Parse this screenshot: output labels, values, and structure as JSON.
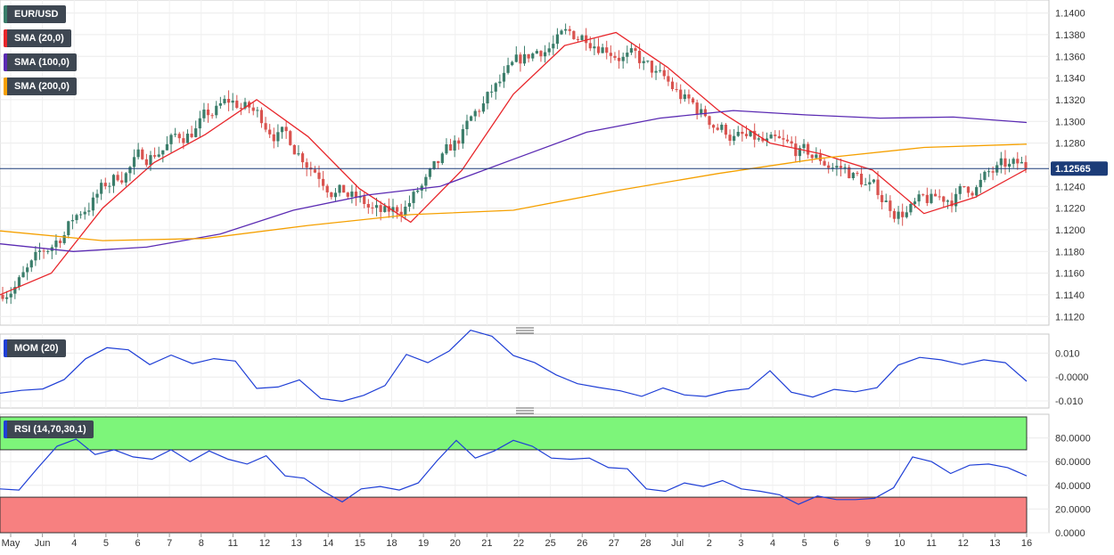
{
  "labels": {
    "instrument": "EUR/USD",
    "sma20": "SMA (20,0)",
    "sma100": "SMA (100,0)",
    "sma200": "SMA (200,0)",
    "mom": "MOM (20)",
    "rsi": "RSI (14,70,30,1)"
  },
  "colors": {
    "bull": "#3a7d6a",
    "bear": "#d9534f",
    "sma20": "#e8262b",
    "sma100": "#5b2bb3",
    "sma200": "#f5a000",
    "indicator": "#1f3fd6",
    "overbought": "#7df57a",
    "oversold": "#f78080",
    "lastPrice": "#1c3c78"
  },
  "chart_data": [
    {
      "type": "candlestick",
      "name": "EUR/USD",
      "timeframe_ticks": [
        "May",
        "Jun",
        "4",
        "5",
        "6",
        "7",
        "8",
        "11",
        "12",
        "13",
        "14",
        "15",
        "18",
        "19",
        "20",
        "21",
        "22",
        "25",
        "26",
        "27",
        "28",
        "Jul",
        "2",
        "3",
        "4",
        "5",
        "6",
        "9",
        "10",
        "11",
        "12",
        "13",
        "16"
      ],
      "ylim": [
        1.1112,
        1.1412
      ],
      "yticks": [
        "1.1120",
        "1.1140",
        "1.1160",
        "1.1180",
        "1.1200",
        "1.1220",
        "1.1240",
        "1.1260",
        "1.1280",
        "1.1300",
        "1.1320",
        "1.1340",
        "1.1360",
        "1.1380",
        "1.1400"
      ],
      "last_price": "1.12565",
      "last_price_value": 1.12565,
      "series": [
        {
          "name": "SMA (20,0)",
          "values": [
            1.114,
            1.116,
            1.122,
            1.1262,
            1.1288,
            1.132,
            1.1286,
            1.1238,
            1.1207,
            1.1255,
            1.1325,
            1.137,
            1.1382,
            1.135,
            1.131,
            1.128,
            1.127,
            1.1255,
            1.1215,
            1.123,
            1.1256
          ]
        },
        {
          "name": "SMA (100,0)",
          "values": [
            1.1187,
            1.118,
            1.1184,
            1.1196,
            1.1218,
            1.1232,
            1.124,
            1.1265,
            1.129,
            1.1303,
            1.131,
            1.1306,
            1.1303,
            1.1304,
            1.1299
          ]
        },
        {
          "name": "SMA (200,0)",
          "values": [
            1.1199,
            1.119,
            1.1192,
            1.1204,
            1.1214,
            1.1218,
            1.1236,
            1.1252,
            1.1266,
            1.1276,
            1.1279
          ]
        }
      ]
    },
    {
      "type": "line",
      "name": "MOM (20)",
      "ylim": [
        -0.013,
        0.018
      ],
      "yticks": [
        "0.010",
        "-0.0000",
        "-0.010"
      ],
      "values": [
        -0.0068,
        -0.0056,
        -0.005,
        -0.0011,
        0.0076,
        0.0123,
        0.0114,
        0.0052,
        0.0092,
        0.0056,
        0.0077,
        0.0067,
        -0.0048,
        -0.0042,
        -0.0012,
        -0.009,
        -0.0102,
        -0.0077,
        -0.0036,
        0.0095,
        0.006,
        0.0109,
        0.0196,
        0.0171,
        0.009,
        0.006,
        0.0009,
        -0.0028,
        -0.0044,
        -0.0058,
        -0.0081,
        -0.0046,
        -0.0075,
        -0.0082,
        -0.0059,
        -0.0049,
        0.0026,
        -0.0064,
        -0.0084,
        -0.0052,
        -0.0062,
        -0.0045,
        0.005,
        0.0082,
        0.0072,
        0.0052,
        0.0072,
        0.006,
        -0.0018
      ]
    },
    {
      "type": "line",
      "name": "RSI (14,70,30,1)",
      "ylim": [
        0,
        100
      ],
      "yticks": [
        "80.0000",
        "60.0000",
        "40.0000",
        "20.0000",
        "0.0000"
      ],
      "overbought": 70,
      "oversold": 30,
      "values": [
        37,
        36,
        55,
        73,
        79,
        66,
        70,
        64,
        62,
        70,
        60,
        69,
        62,
        58,
        65,
        48,
        46,
        35,
        26,
        37,
        39,
        36,
        42,
        61,
        78,
        63,
        69,
        78,
        73,
        63,
        62,
        63,
        55,
        54,
        37,
        35,
        42,
        39,
        44,
        37,
        35,
        32,
        24,
        31,
        28,
        28,
        29,
        38,
        64,
        60,
        50,
        57,
        58,
        55,
        48
      ]
    }
  ]
}
